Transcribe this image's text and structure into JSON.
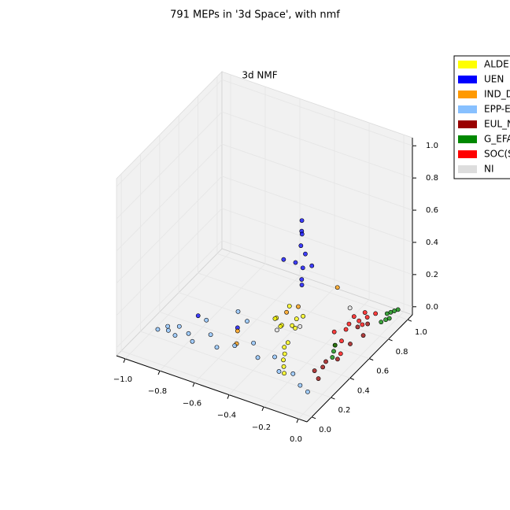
{
  "chart_data": {
    "type": "scatter3d",
    "title": "791 MEPs in '3d Space', with nmf",
    "subtitle": "3d NMF",
    "xlim": [
      -1.05,
      0.05
    ],
    "ylim": [
      -0.05,
      1.05
    ],
    "zlim": [
      -0.05,
      1.05
    ],
    "xticks": [
      {
        "value": -1.0,
        "label": "−1.0"
      },
      {
        "value": -0.8,
        "label": "−0.8"
      },
      {
        "value": -0.6,
        "label": "−0.6"
      },
      {
        "value": -0.4,
        "label": "−0.4"
      },
      {
        "value": -0.2,
        "label": "−0.2"
      },
      {
        "value": 0.0,
        "label": "0.0"
      }
    ],
    "yticks": [
      {
        "value": 0.0,
        "label": "0.0"
      },
      {
        "value": 0.2,
        "label": "0.2"
      },
      {
        "value": 0.4,
        "label": "0.4"
      },
      {
        "value": 0.6,
        "label": "0.6"
      },
      {
        "value": 0.8,
        "label": "0.8"
      },
      {
        "value": 1.0,
        "label": "1.0"
      }
    ],
    "zticks": [
      {
        "value": 0.0,
        "label": "0.0"
      },
      {
        "value": 0.2,
        "label": "0.2"
      },
      {
        "value": 0.4,
        "label": "0.4"
      },
      {
        "value": 0.6,
        "label": "0.6"
      },
      {
        "value": 0.8,
        "label": "0.8"
      },
      {
        "value": 1.0,
        "label": "1.0"
      }
    ],
    "grid": true,
    "legend": "upper right",
    "series": [
      {
        "name": "ALDE",
        "color": "#ffff00",
        "x": [
          -0.4,
          -0.38,
          -0.35,
          -0.42,
          -0.33,
          -0.37,
          -0.3,
          -0.28,
          -0.45,
          -0.36,
          -0.32,
          -0.25,
          -0.22,
          -0.4,
          -0.34
        ],
        "y": [
          0.5,
          0.45,
          0.55,
          0.48,
          0.4,
          0.6,
          0.35,
          0.3,
          0.52,
          0.65,
          0.42,
          0.25,
          0.2,
          0.58,
          0.5
        ],
        "z": [
          0.05,
          0.08,
          0.02,
          0.1,
          0,
          0.04,
          0,
          0,
          0.06,
          0.03,
          0.02,
          0,
          0,
          0.12,
          0.07
        ]
      },
      {
        "name": "UEN",
        "color": "#0000ff",
        "x": [
          -0.45,
          -0.44,
          -0.46,
          -0.45,
          -0.43,
          -0.47,
          -0.45,
          -0.44,
          -0.5,
          -0.42,
          -0.45,
          -0.6,
          -0.8
        ],
        "y": [
          0.8,
          0.78,
          0.82,
          0.79,
          0.8,
          0.77,
          0.81,
          0.78,
          0.7,
          0.85,
          0.8,
          0.4,
          0.35
        ],
        "z": [
          0.5,
          0.45,
          0.4,
          0.35,
          0.3,
          0.25,
          0.2,
          0.15,
          0.3,
          0.2,
          0.1,
          0.02,
          0.05
        ]
      },
      {
        "name": "IND_D",
        "color": "#ff9900",
        "x": [
          -0.4,
          -0.6,
          -0.55,
          -0.3,
          -0.36
        ],
        "y": [
          0.55,
          0.4,
          0.3,
          0.9,
          0.6
        ],
        "z": [
          0.1,
          0,
          0,
          0.08,
          0.12
        ]
      },
      {
        "name": "EPP-E",
        "color": "#87c0ff",
        "x": [
          -0.95,
          -0.9,
          -0.85,
          -0.8,
          -0.75,
          -0.7,
          -0.62,
          -0.55,
          -0.48,
          -0.4,
          -0.33,
          -0.25,
          -0.18,
          -0.1,
          -0.04,
          -0.92,
          -0.87,
          -0.78,
          -0.6,
          -0.68
        ],
        "y": [
          0.2,
          0.22,
          0.2,
          0.25,
          0.2,
          0.3,
          0.22,
          0.28,
          0.35,
          0.25,
          0.3,
          0.2,
          0.22,
          0.15,
          0.12,
          0.25,
          0.28,
          0.4,
          0.5,
          0.55
        ],
        "z": [
          0,
          0,
          0,
          0,
          0,
          0,
          0,
          0,
          0,
          0,
          0,
          0,
          0,
          0,
          0,
          0,
          0,
          0,
          0,
          0
        ]
      },
      {
        "name": "EUL_N",
        "color": "#990000",
        "x": [
          -0.1,
          -0.08,
          -0.05,
          -0.12,
          -0.06,
          -0.04,
          -0.1,
          -0.07,
          -0.09,
          -0.05
        ],
        "y": [
          0.3,
          0.35,
          0.45,
          0.55,
          0.6,
          0.7,
          0.75,
          0.8,
          0.4,
          0.25
        ],
        "z": [
          0,
          0,
          0,
          0,
          0,
          0,
          0,
          0,
          0,
          0
        ]
      },
      {
        "name": "G_EFA",
        "color": "#008800",
        "x": [
          -0.02,
          -0.01,
          0,
          -0.03,
          -0.02,
          -0.01,
          0,
          -0.1,
          -0.12,
          -0.08
        ],
        "y": [
          0.85,
          0.88,
          0.9,
          0.93,
          0.95,
          0.97,
          0.99,
          0.5,
          0.55,
          0.45
        ],
        "z": [
          0,
          0,
          0,
          0,
          0,
          0,
          0,
          0,
          0,
          0
        ]
      },
      {
        "name": "SOC(S",
        "color": "#ff0000",
        "x": [
          -0.15,
          -0.12,
          -0.1,
          -0.14,
          -0.08,
          -0.18,
          -0.16,
          -0.11,
          -0.13,
          -0.09,
          -0.06
        ],
        "y": [
          0.75,
          0.8,
          0.85,
          0.7,
          0.9,
          0.65,
          0.82,
          0.6,
          0.88,
          0.78,
          0.5
        ],
        "z": [
          0,
          0,
          0,
          0,
          0,
          0,
          0,
          0,
          0,
          0,
          0
        ]
      },
      {
        "name": "NI",
        "color": "#dddddd",
        "x": [
          -0.4,
          -0.2,
          -0.35
        ],
        "y": [
          0.45,
          0.85,
          0.6
        ],
        "z": [
          0.05,
          0.02,
          0
        ]
      }
    ]
  }
}
